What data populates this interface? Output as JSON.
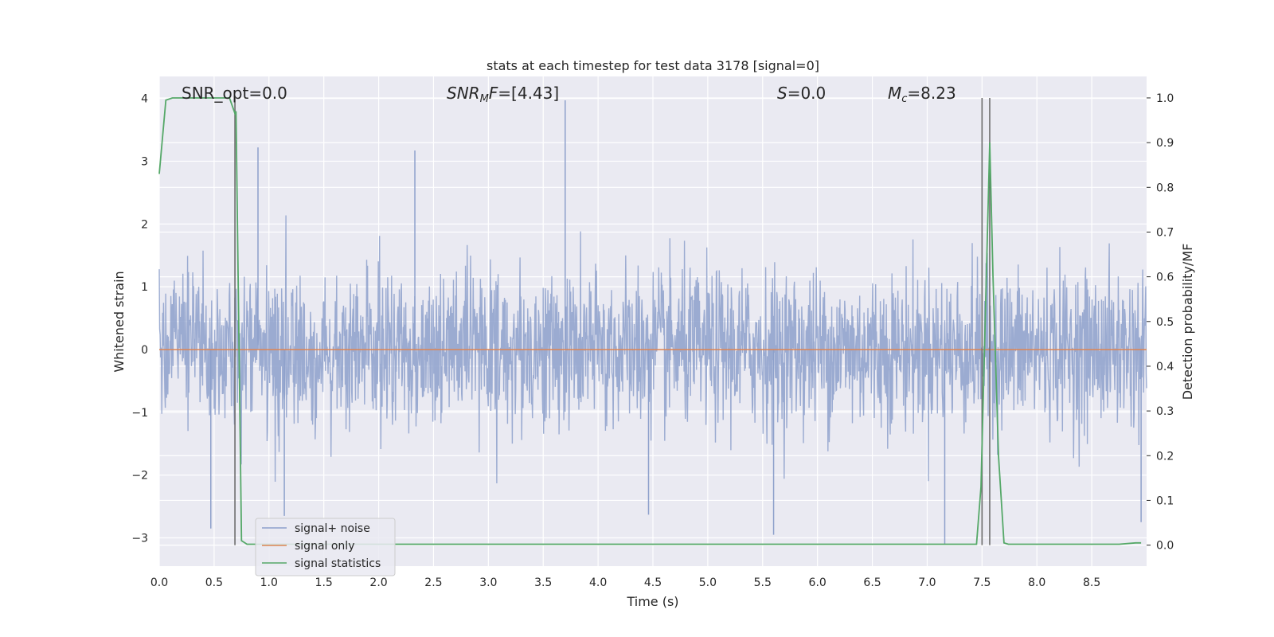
{
  "chart_data": {
    "type": "line",
    "title": "stats at each timestep for test data 3178 [signal=0]",
    "xlabel": "Time (s)",
    "ylabel": "Whitened strain",
    "y2label": "Detection probability/MF",
    "xlim": [
      0.0,
      9.0
    ],
    "ylim": [
      -3.45,
      4.35
    ],
    "y2lim": [
      -0.047,
      1.048
    ],
    "xticks": [
      "0.0",
      "0.5",
      "1.0",
      "1.5",
      "2.0",
      "2.5",
      "3.0",
      "3.5",
      "4.0",
      "4.5",
      "5.0",
      "5.5",
      "6.0",
      "6.5",
      "7.0",
      "7.5",
      "8.0",
      "8.5"
    ],
    "yticks": [
      "4",
      "3",
      "2",
      "1",
      "0",
      "−1",
      "−2",
      "−3"
    ],
    "y2ticks": [
      "1.0",
      "0.9",
      "0.8",
      "0.7",
      "0.6",
      "0.5",
      "0.4",
      "0.3",
      "0.2",
      "0.1",
      "0.0"
    ],
    "grid": true,
    "legend_placement": "lower-left",
    "annotations": [
      {
        "label": "SNR_opt",
        "text": "=0.0"
      },
      {
        "label": "SNR_MF",
        "text": "=[4.43]"
      },
      {
        "label": "S",
        "text": "=0.0"
      },
      {
        "label": "M_c",
        "text": "=8.23"
      }
    ],
    "vlines_x": [
      0.69,
      7.5,
      7.57
    ],
    "series": [
      {
        "name": "signal+ noise",
        "color": "#8da0cb",
        "description_visible": "whitened strain noise trace",
        "envelope_typical": [
          -1.8,
          1.8
        ],
        "spikes": [
          {
            "x": 0.9,
            "y": 3.22
          },
          {
            "x": 2.33,
            "y": 3.17
          },
          {
            "x": 3.7,
            "y": 3.97
          },
          {
            "x": 0.47,
            "y": -2.85
          },
          {
            "x": 1.14,
            "y": -2.65
          },
          {
            "x": 4.46,
            "y": -2.63
          },
          {
            "x": 5.6,
            "y": -2.95
          },
          {
            "x": 7.16,
            "y": -3.1
          },
          {
            "x": 8.95,
            "y": -2.75
          }
        ]
      },
      {
        "name": "signal only",
        "color": "#dd8452",
        "y_constant": 0.0
      },
      {
        "name": "signal statistics",
        "color": "#55a868",
        "axis": "y2",
        "x": [
          0.0,
          0.06,
          0.12,
          0.3,
          0.5,
          0.6,
          0.64,
          0.69,
          0.7,
          0.75,
          0.8,
          0.9,
          7.45,
          7.49,
          7.57,
          7.6,
          7.65,
          7.7,
          7.74,
          8.75,
          8.9,
          8.95
        ],
        "y": [
          0.83,
          0.995,
          1.0,
          1.0,
          1.0,
          1.0,
          1.0,
          0.965,
          0.97,
          0.01,
          0.002,
          0.002,
          0.002,
          0.13,
          0.9,
          0.6,
          0.2,
          0.005,
          0.002,
          0.002,
          0.005,
          0.005
        ]
      }
    ]
  }
}
